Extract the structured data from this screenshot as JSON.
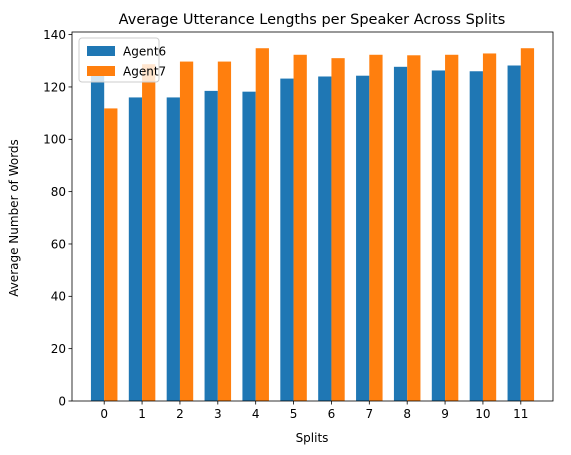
{
  "chart_data": {
    "type": "bar",
    "title": "Average Utterance Lengths per Speaker Across Splits",
    "xlabel": "Splits",
    "ylabel": "Average Number of Words",
    "categories": [
      "0",
      "1",
      "2",
      "3",
      "4",
      "5",
      "6",
      "7",
      "8",
      "9",
      "10",
      "11"
    ],
    "series": [
      {
        "name": "Agent6",
        "color": "#1f77b4",
        "values": [
          125.5,
          116,
          116,
          118.5,
          118.2,
          123.2,
          124,
          124.3,
          127.7,
          126.3,
          126,
          128.2
        ]
      },
      {
        "name": "Agent7",
        "color": "#ff7f0e",
        "values": [
          111.8,
          128.7,
          129.7,
          129.7,
          134.8,
          132.3,
          131,
          132.3,
          132.1,
          132.3,
          132.8,
          134.8
        ]
      }
    ],
    "ylim": [
      0,
      141
    ],
    "yticks": [
      0,
      20,
      40,
      60,
      80,
      100,
      120,
      140
    ],
    "grid": false,
    "legend_position": "upper-left"
  }
}
